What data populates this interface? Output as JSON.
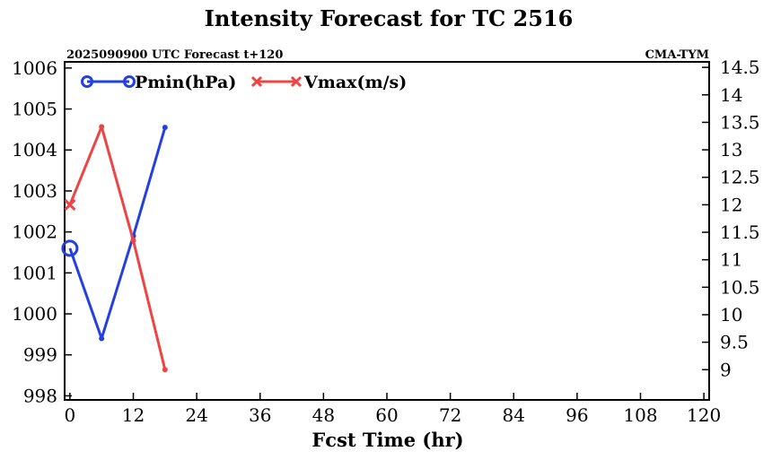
{
  "chart_data": {
    "type": "line",
    "title": "Intensity Forecast for TC 2516",
    "subtitle_left": "2025090900 UTC Forecast t+120",
    "subtitle_right": "CMA-TYM",
    "xlabel": "Fcst Time (hr)",
    "xlim": [
      -1,
      121
    ],
    "xticks": [
      0,
      12,
      24,
      36,
      48,
      60,
      72,
      84,
      96,
      108,
      120
    ],
    "y_left": {
      "lim": [
        997.9,
        1006.15
      ],
      "ticks": [
        998,
        999,
        1000,
        1001,
        1002,
        1003,
        1004,
        1005,
        1006
      ]
    },
    "y_right": {
      "lim": [
        8.45,
        14.6
      ],
      "ticks": [
        9,
        9.5,
        10,
        10.5,
        11,
        11.5,
        12,
        12.5,
        13,
        13.5,
        14,
        14.5
      ]
    },
    "series": [
      {
        "name": "Pmin(hPa)",
        "axis": "left",
        "color": "#2440e0",
        "marker": "circle",
        "x": [
          0,
          6,
          12,
          18
        ],
        "y": [
          1001.6,
          999.4,
          1001.9,
          1004.55
        ]
      },
      {
        "name": "Vmax(m/s)",
        "axis": "right",
        "color": "#ee4444",
        "marker": "x",
        "x": [
          0,
          6,
          12,
          18
        ],
        "y": [
          12.0,
          13.42,
          11.35,
          9.0
        ]
      }
    ],
    "legend": "top-left",
    "grid": false
  }
}
